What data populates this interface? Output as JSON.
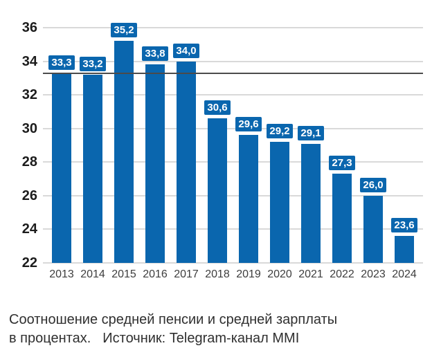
{
  "caption": {
    "line1": "Соотношение средней пенсии и средней зарплаты",
    "line2_left": "в процентах.",
    "line2_right": "Источник: Telegram-канал MMI"
  },
  "chart_data": {
    "type": "bar",
    "categories": [
      "2013",
      "2014",
      "2015",
      "2016",
      "2017",
      "2018",
      "2019",
      "2020",
      "2021",
      "2022",
      "2023",
      "2024"
    ],
    "values": [
      33.3,
      33.2,
      35.2,
      33.8,
      34.0,
      30.6,
      29.6,
      29.2,
      29.1,
      27.3,
      26.0,
      23.6
    ],
    "value_labels": [
      "33,3",
      "33,2",
      "35,2",
      "33,8",
      "34,0",
      "30,6",
      "29,6",
      "29,2",
      "29,1",
      "27,3",
      "26,0",
      "23,6"
    ],
    "title": "",
    "xlabel": "",
    "ylabel": "",
    "ylim": [
      22,
      36
    ],
    "yticks": [
      36,
      34,
      32,
      30,
      28,
      26,
      24,
      22
    ],
    "grid": true,
    "legend": "none",
    "reference_line": {
      "value": 33.3
    },
    "colors": {
      "bar": "#0a66ae",
      "value_label_bg": "#0a66ae",
      "value_label_text": "#ffffff",
      "gridline": "#d9d9d9",
      "reference_line": "#4b4b4b",
      "y_tick_text": "#1c1c1c",
      "x_tick_text": "#3d3d3d",
      "caption_text": "#2f2f2f",
      "background": "#ffffff"
    }
  }
}
